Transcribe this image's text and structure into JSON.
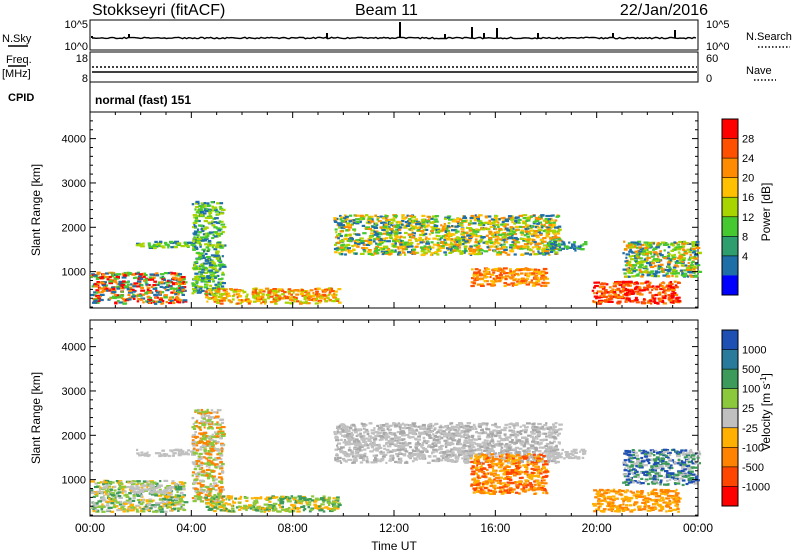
{
  "header": {
    "station": "Stokkseyri (fitACF)",
    "beam": "Beam 11",
    "date": "22/Jan/2016"
  },
  "top_panels": {
    "nsky_label": "N.Sky",
    "nsky_top_tick": "10^5",
    "nsky_bottom_tick": "10^0",
    "nsearch_label": "N.Search",
    "nsearch_top_tick": "10^5",
    "nsearch_bottom_tick": "10^0",
    "freq_label": "Freq.",
    "freq_unit": "[MHz]",
    "freq_top_tick": "18",
    "freq_bottom_tick": "8",
    "nave_label": "Nave",
    "nave_top_tick": "60",
    "nave_bottom_tick": "0",
    "cpid_label": "CPID",
    "cpid_value": "normal (fast) 151"
  },
  "chart_data": [
    {
      "type": "heatmap",
      "name": "power-panel",
      "ylabel": "Slant Range [km]",
      "yticks": [
        "1000",
        "2000",
        "3000",
        "4000"
      ],
      "ylim": [
        180,
        4600
      ],
      "xlim_hours": [
        0,
        24
      ],
      "colorbar_label": "Power [dB]",
      "colorbar_ticks": [
        "28",
        "24",
        "20",
        "16",
        "12",
        "8",
        "4"
      ],
      "colorbar_colors": [
        "#ff0000",
        "#ff5000",
        "#ff8c00",
        "#ffc000",
        "#a8d400",
        "#46c830",
        "#2e9e6e",
        "#1e6ea8",
        "#0000ff"
      ],
      "scatter_regions": [
        {
          "t0": 0.0,
          "t1": 3.7,
          "r0": 300,
          "r1": 1000,
          "colors": [
            "#ff0000",
            "#ff8c00",
            "#46c830",
            "#1e6ea8"
          ]
        },
        {
          "t0": 1.8,
          "t1": 4.1,
          "r0": 1550,
          "r1": 1700,
          "colors": [
            "#1e6ea8",
            "#46c830",
            "#a8d400"
          ]
        },
        {
          "t0": 4.0,
          "t1": 5.2,
          "r0": 500,
          "r1": 2600,
          "colors": [
            "#1e6ea8",
            "#46c830",
            "#a8d400"
          ]
        },
        {
          "t0": 4.5,
          "t1": 9.8,
          "r0": 300,
          "r1": 650,
          "colors": [
            "#ff5000",
            "#ff8c00",
            "#ffc000",
            "#a8d400"
          ]
        },
        {
          "t0": 9.6,
          "t1": 18.5,
          "r0": 1400,
          "r1": 2300,
          "colors": [
            "#1e6ea8",
            "#46c830",
            "#a8d400",
            "#ffc000",
            "#ff8c00"
          ]
        },
        {
          "t0": 15.0,
          "t1": 18.0,
          "r0": 700,
          "r1": 1100,
          "colors": [
            "#ff5000",
            "#ff8c00",
            "#ffc000"
          ]
        },
        {
          "t0": 18.0,
          "t1": 19.5,
          "r0": 1500,
          "r1": 1700,
          "colors": [
            "#1e6ea8",
            "#46c830"
          ]
        },
        {
          "t0": 19.8,
          "t1": 23.2,
          "r0": 300,
          "r1": 800,
          "colors": [
            "#ff0000",
            "#ff5000",
            "#ff8c00"
          ]
        },
        {
          "t0": 21.0,
          "t1": 24.0,
          "r0": 900,
          "r1": 1700,
          "colors": [
            "#1e6ea8",
            "#46c830",
            "#a8d400",
            "#ff8c00"
          ]
        }
      ]
    },
    {
      "type": "heatmap",
      "name": "velocity-panel",
      "ylabel": "Slant Range [km]",
      "yticks": [
        "1000",
        "2000",
        "3000",
        "4000"
      ],
      "ylim": [
        180,
        4600
      ],
      "xlim_hours": [
        0,
        24
      ],
      "xticks": [
        "00:00",
        "04:00",
        "08:00",
        "12:00",
        "16:00",
        "20:00",
        "00:00"
      ],
      "xlabel": "Time UT",
      "colorbar_label": "Velocity [m s^-1]",
      "colorbar_ticks": [
        "1000",
        "500",
        "100",
        "25",
        "-25",
        "-100",
        "-500",
        "-1000"
      ],
      "colorbar_colors": [
        "#1e50b4",
        "#2a7a9c",
        "#3c9a5a",
        "#8cc83c",
        "#c0c0c0",
        "#ffb000",
        "#ff8200",
        "#ff4600",
        "#ff0000"
      ],
      "scatter_regions": [
        {
          "t0": 0.0,
          "t1": 3.7,
          "r0": 300,
          "r1": 1000,
          "colors": [
            "#8cc83c",
            "#ffb000",
            "#c0c0c0",
            "#3c9a5a"
          ]
        },
        {
          "t0": 1.5,
          "t1": 3.2,
          "r0": 700,
          "r1": 900,
          "colors": [
            "#c0c0c0"
          ]
        },
        {
          "t0": 1.8,
          "t1": 4.1,
          "r0": 1550,
          "r1": 1700,
          "colors": [
            "#c0c0c0"
          ]
        },
        {
          "t0": 4.0,
          "t1": 5.2,
          "r0": 500,
          "r1": 2600,
          "colors": [
            "#ff8200",
            "#c0c0c0",
            "#8cc83c"
          ]
        },
        {
          "t0": 4.5,
          "t1": 9.8,
          "r0": 300,
          "r1": 650,
          "colors": [
            "#8cc83c",
            "#ffb000",
            "#3c9a5a"
          ]
        },
        {
          "t0": 9.6,
          "t1": 18.5,
          "r0": 1400,
          "r1": 2300,
          "colors": [
            "#c0c0c0",
            "#c0c0c0",
            "#a8a8a8"
          ]
        },
        {
          "t0": 15.0,
          "t1": 18.0,
          "r0": 700,
          "r1": 1600,
          "colors": [
            "#ff8200",
            "#ff4600",
            "#ffb000"
          ]
        },
        {
          "t0": 18.0,
          "t1": 19.5,
          "r0": 1500,
          "r1": 1700,
          "colors": [
            "#c0c0c0"
          ]
        },
        {
          "t0": 19.8,
          "t1": 23.2,
          "r0": 300,
          "r1": 800,
          "colors": [
            "#ff8200",
            "#ffb000"
          ]
        },
        {
          "t0": 21.0,
          "t1": 24.0,
          "r0": 900,
          "r1": 1700,
          "colors": [
            "#c0c0c0",
            "#3c9a5a",
            "#1e50b4"
          ]
        }
      ]
    }
  ]
}
